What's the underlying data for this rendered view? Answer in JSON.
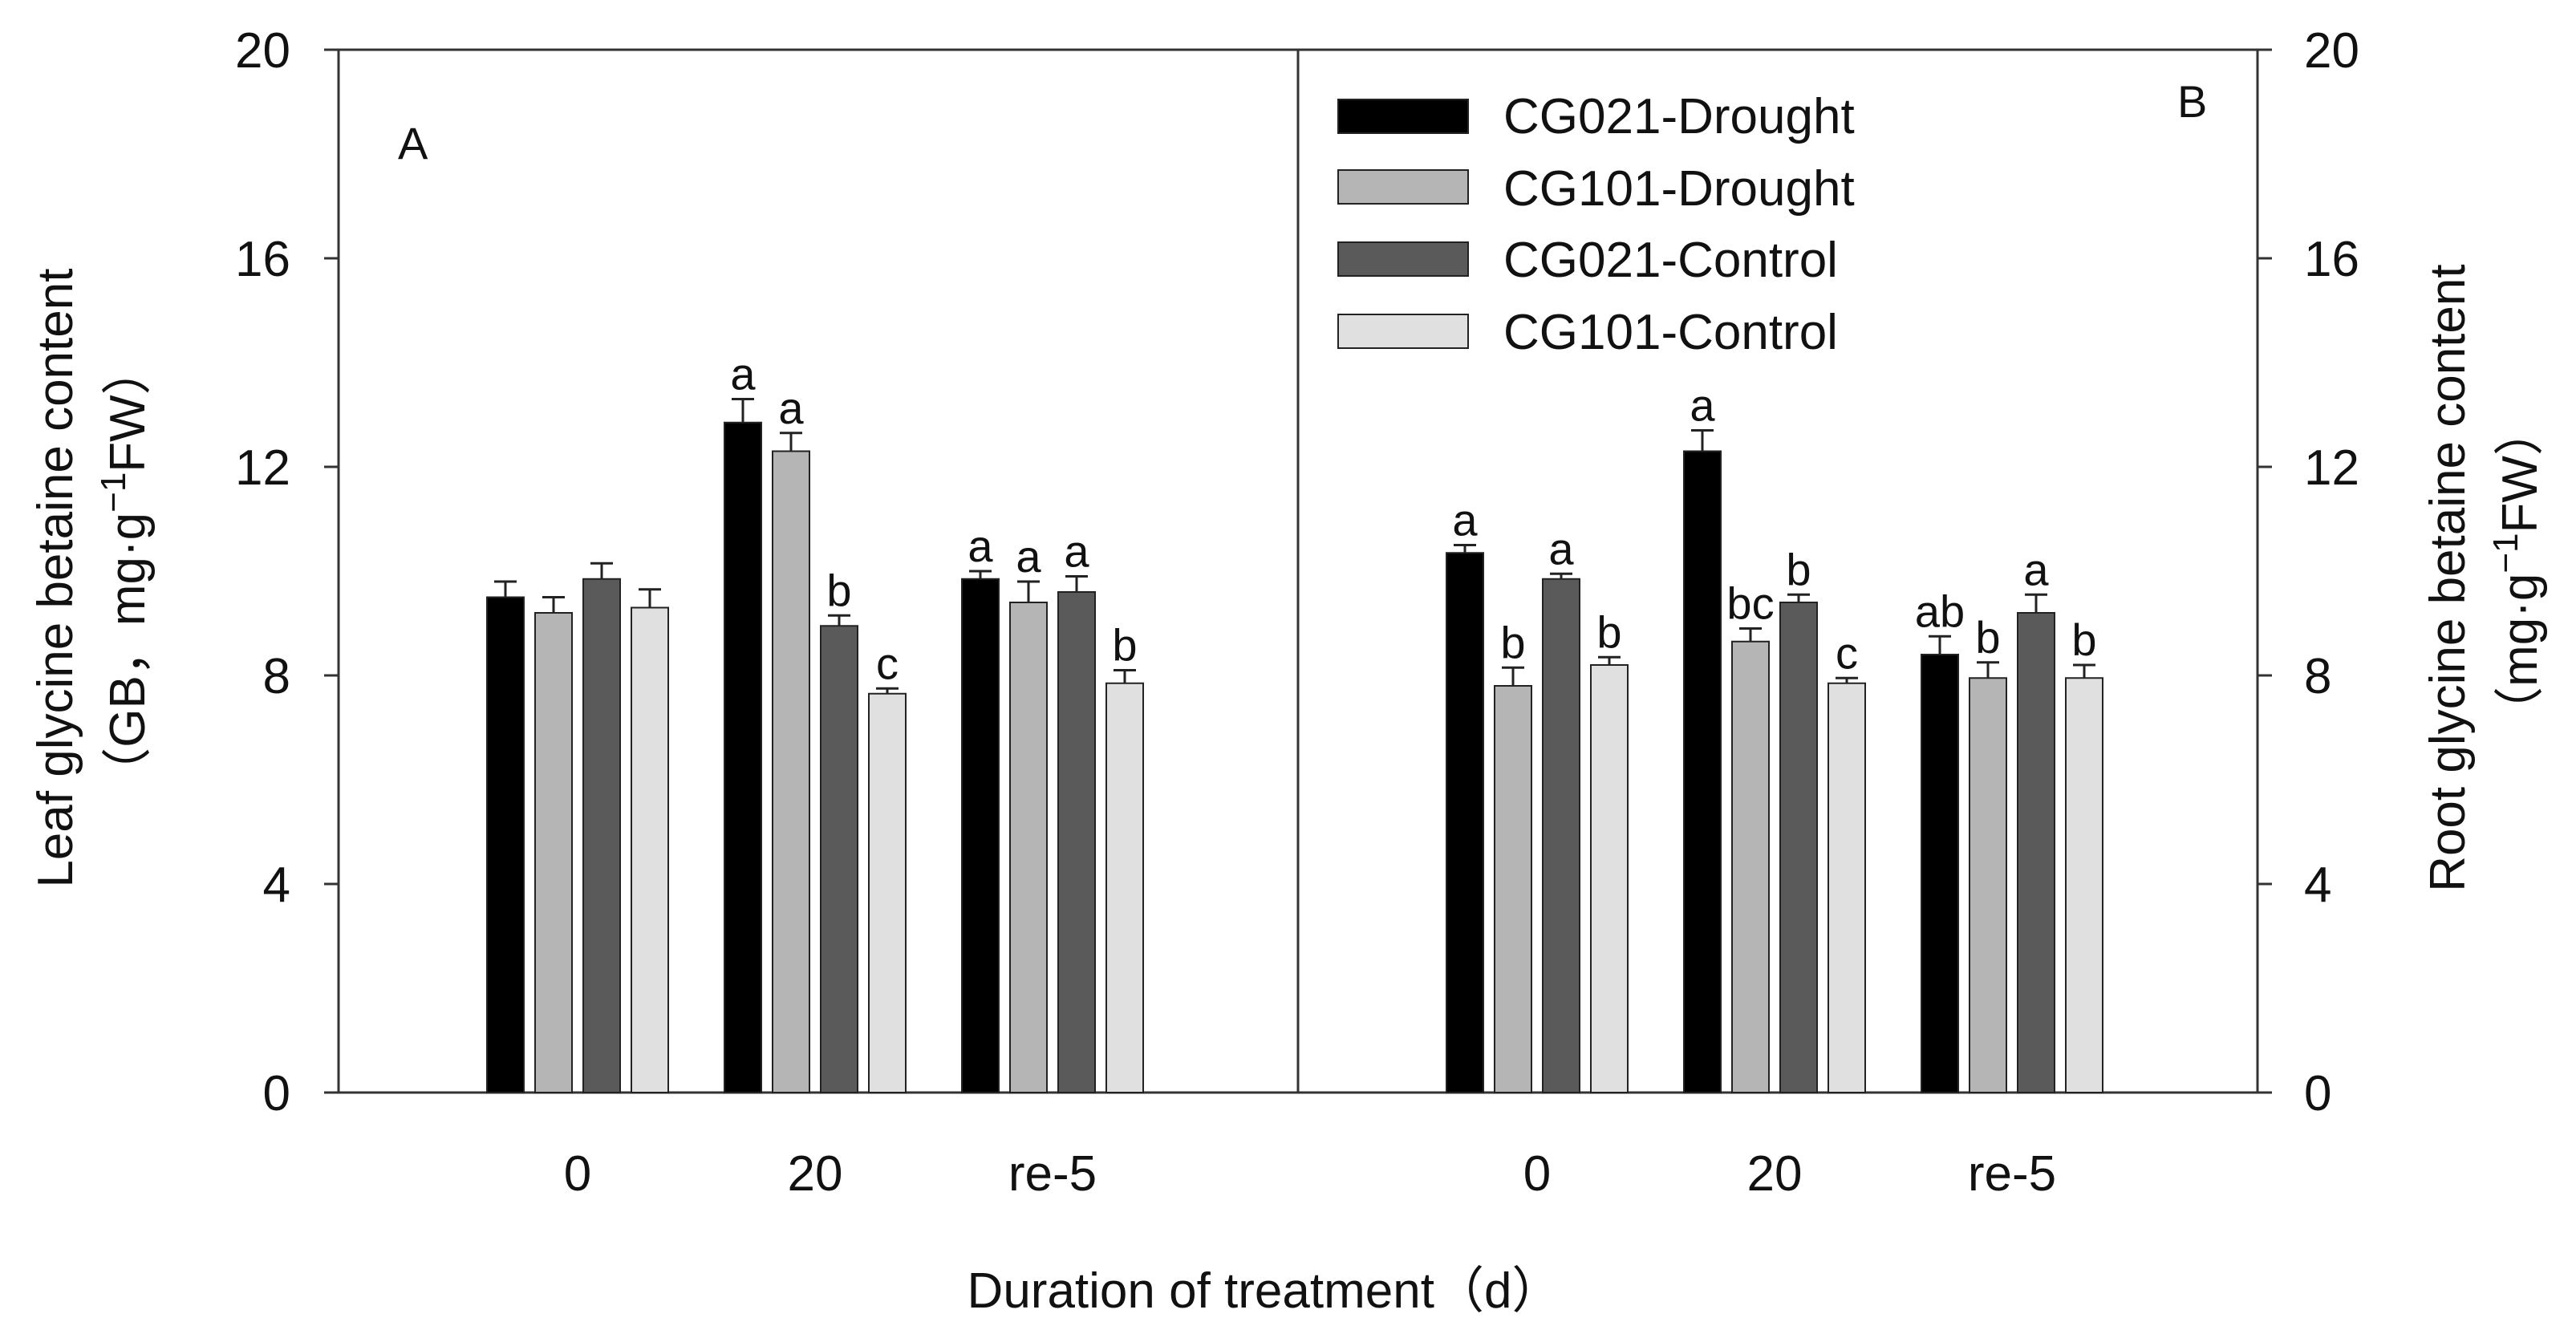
{
  "chart_data": {
    "type": "bar",
    "x_title": "Duration of treatment（d）",
    "categories": [
      "0",
      "20",
      "re-5"
    ],
    "y_ticks": [
      0,
      4,
      8,
      12,
      16,
      20
    ],
    "ylim": [
      0,
      20
    ],
    "legend": [
      {
        "name": "CG021-Drought",
        "color": "#000000"
      },
      {
        "name": "CG101-Drought",
        "color": "#b5b5b5"
      },
      {
        "name": "CG021-Control",
        "color": "#5a5a5a"
      },
      {
        "name": "CG101-Control",
        "color": "#e0e0e0"
      }
    ],
    "panels": [
      {
        "label": "A",
        "ylabel_line1": "Leaf glycine betaine content",
        "ylabel_line2_prefix": "（GB，mg·g",
        "ylabel_sup": "−1",
        "ylabel_line2_suffix": "FW）",
        "series": [
          {
            "name": "CG021-Drought",
            "values": [
              9.5,
              12.85,
              9.85
            ],
            "errors": [
              0.3,
              0.45,
              0.15
            ],
            "labels": [
              "",
              "a",
              "a"
            ]
          },
          {
            "name": "CG101-Drought",
            "values": [
              9.2,
              12.3,
              9.4
            ],
            "errors": [
              0.3,
              0.35,
              0.4
            ],
            "labels": [
              "",
              "a",
              "a"
            ]
          },
          {
            "name": "CG021-Control",
            "values": [
              9.85,
              8.95,
              9.6
            ],
            "errors": [
              0.3,
              0.2,
              0.3
            ],
            "labels": [
              "",
              "b",
              "a"
            ]
          },
          {
            "name": "CG101-Control",
            "values": [
              9.3,
              7.65,
              7.85
            ],
            "errors": [
              0.35,
              0.1,
              0.25
            ],
            "labels": [
              "",
              "c",
              "b"
            ]
          }
        ]
      },
      {
        "label": "B",
        "ylabel_line1": "Root glycine betaine content",
        "ylabel_line2_prefix": "（mg·g",
        "ylabel_sup": "−1",
        "ylabel_line2_suffix": "FW）",
        "series": [
          {
            "name": "CG021-Drought",
            "values": [
              10.35,
              12.3,
              8.4
            ],
            "errors": [
              0.15,
              0.4,
              0.35
            ],
            "labels": [
              "a",
              "a",
              "ab"
            ]
          },
          {
            "name": "CG101-Drought",
            "values": [
              7.8,
              8.65,
              7.95
            ],
            "errors": [
              0.35,
              0.25,
              0.3
            ],
            "labels": [
              "b",
              "bc",
              "b"
            ]
          },
          {
            "name": "CG021-Control",
            "values": [
              9.85,
              9.4,
              9.2
            ],
            "errors": [
              0.1,
              0.15,
              0.35
            ],
            "labels": [
              "a",
              "b",
              "a"
            ]
          },
          {
            "name": "CG101-Control",
            "values": [
              8.2,
              7.85,
              7.95
            ],
            "errors": [
              0.15,
              0.1,
              0.25
            ],
            "labels": [
              "b",
              "c",
              "b"
            ]
          }
        ]
      }
    ]
  }
}
